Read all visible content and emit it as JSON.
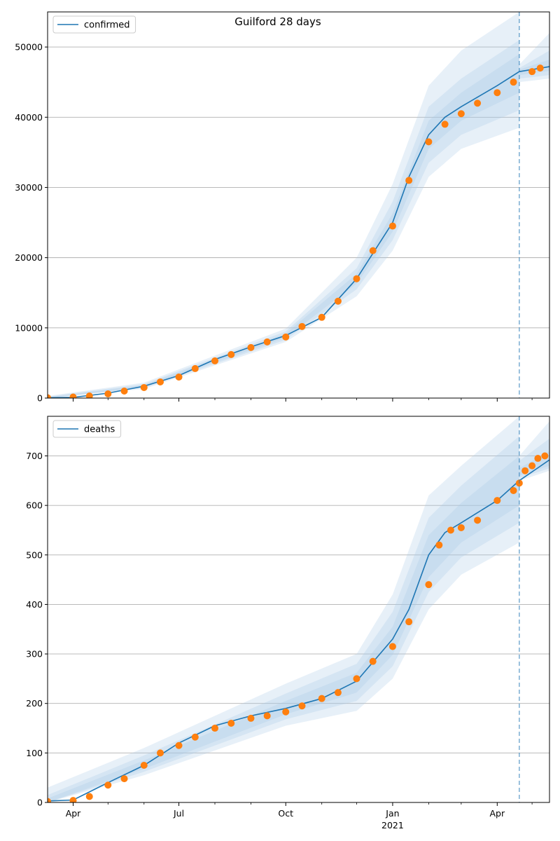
{
  "figure": {
    "title": "Guilford 28 days"
  },
  "colors": {
    "model_line": "#1f77b4",
    "observed": "#ff7f0e",
    "band": "#a9c8e6",
    "grid": "#b0b0b0",
    "vline": "#1f77b4"
  },
  "x_axis": {
    "start": "2020-03-10",
    "end": "2021-05-16",
    "major_ticks": [
      {
        "date": "2020-04-01",
        "label": "Apr",
        "sublabel": ""
      },
      {
        "date": "2020-07-01",
        "label": "Jul",
        "sublabel": ""
      },
      {
        "date": "2020-10-01",
        "label": "Oct",
        "sublabel": ""
      },
      {
        "date": "2021-01-01",
        "label": "Jan",
        "sublabel": "2021"
      },
      {
        "date": "2021-04-01",
        "label": "Apr",
        "sublabel": ""
      }
    ],
    "minor_ticks": [
      "2020-05-01",
      "2020-06-01",
      "2020-08-01",
      "2020-09-01",
      "2020-11-01",
      "2020-12-01",
      "2021-02-01",
      "2021-03-01",
      "2021-05-01"
    ]
  },
  "chart_data": [
    {
      "type": "line",
      "legend": "confirmed",
      "legend_placement": "top-left",
      "grid": "y",
      "ylim": [
        0,
        55000
      ],
      "yticks": [
        0,
        10000,
        20000,
        30000,
        40000,
        50000
      ],
      "forecast_start": "2021-04-20",
      "model": [
        [
          "2020-03-10",
          50
        ],
        [
          "2020-04-01",
          100
        ],
        [
          "2020-05-01",
          700
        ],
        [
          "2020-06-01",
          1700
        ],
        [
          "2020-07-01",
          3200
        ],
        [
          "2020-08-01",
          5500
        ],
        [
          "2020-09-01",
          7300
        ],
        [
          "2020-10-01",
          8900
        ],
        [
          "2020-11-01",
          11500
        ],
        [
          "2020-12-01",
          17000
        ],
        [
          "2021-01-01",
          25000
        ],
        [
          "2021-01-15",
          31500
        ],
        [
          "2021-02-01",
          37500
        ],
        [
          "2021-02-15",
          40000
        ],
        [
          "2021-03-01",
          41500
        ],
        [
          "2021-04-01",
          44500
        ],
        [
          "2021-04-20",
          46500
        ],
        [
          "2021-05-16",
          47200
        ]
      ],
      "bands": [
        {
          "level": "outer",
          "lower": [
            [
              "2020-03-10",
              0
            ],
            [
              "2020-06-01",
              1300
            ],
            [
              "2020-10-01",
              8000
            ],
            [
              "2020-12-01",
              14500
            ],
            [
              "2021-01-01",
              21000
            ],
            [
              "2021-02-01",
              31500
            ],
            [
              "2021-03-01",
              35500
            ],
            [
              "2021-04-20",
              38500
            ],
            [
              "2021-04-20",
              45000
            ],
            [
              "2021-05-16",
              45500
            ]
          ],
          "upper": [
            [
              "2020-03-10",
              300
            ],
            [
              "2020-06-01",
              2200
            ],
            [
              "2020-10-01",
              9900
            ],
            [
              "2020-12-01",
              20000
            ],
            [
              "2021-01-01",
              30500
            ],
            [
              "2021-02-01",
              44500
            ],
            [
              "2021-03-01",
              49500
            ],
            [
              "2021-04-20",
              55000
            ],
            [
              "2021-04-20",
              47500
            ],
            [
              "2021-05-16",
              52000
            ]
          ]
        },
        {
          "level": "middle",
          "lower": [
            [
              "2020-03-10",
              0
            ],
            [
              "2020-06-01",
              1450
            ],
            [
              "2020-10-01",
              8300
            ],
            [
              "2020-12-01",
              15500
            ],
            [
              "2021-01-01",
              22500
            ],
            [
              "2021-02-01",
              33500
            ],
            [
              "2021-03-01",
              37500
            ],
            [
              "2021-04-20",
              41000
            ],
            [
              "2021-04-20",
              45500
            ],
            [
              "2021-05-16",
              46000
            ]
          ],
          "upper": [
            [
              "2020-03-10",
              200
            ],
            [
              "2020-06-01",
              2000
            ],
            [
              "2020-10-01",
              9500
            ],
            [
              "2020-12-01",
              18500
            ],
            [
              "2021-01-01",
              28000
            ],
            [
              "2021-02-01",
              41500
            ],
            [
              "2021-03-01",
              45500
            ],
            [
              "2021-04-20",
              51000
            ],
            [
              "2021-04-20",
              47000
            ],
            [
              "2021-05-16",
              49500
            ]
          ]
        },
        {
          "level": "inner",
          "lower": [
            [
              "2020-03-10",
              0
            ],
            [
              "2020-06-01",
              1550
            ],
            [
              "2020-10-01",
              8600
            ],
            [
              "2020-12-01",
              16300
            ],
            [
              "2021-01-01",
              23700
            ],
            [
              "2021-02-01",
              35500
            ],
            [
              "2021-03-01",
              39500
            ],
            [
              "2021-04-20",
              43500
            ],
            [
              "2021-04-20",
              46000
            ],
            [
              "2021-05-16",
              46600
            ]
          ],
          "upper": [
            [
              "2020-03-10",
              120
            ],
            [
              "2020-06-01",
              1850
            ],
            [
              "2020-10-01",
              9200
            ],
            [
              "2020-12-01",
              17700
            ],
            [
              "2021-01-01",
              26300
            ],
            [
              "2021-02-01",
              39500
            ],
            [
              "2021-03-01",
              43500
            ],
            [
              "2021-04-20",
              49000
            ],
            [
              "2021-04-20",
              46800
            ],
            [
              "2021-05-16",
              48200
            ]
          ]
        }
      ],
      "observed": [
        [
          "2020-03-10",
          50
        ],
        [
          "2020-04-01",
          150
        ],
        [
          "2020-04-15",
          300
        ],
        [
          "2020-05-01",
          600
        ],
        [
          "2020-05-15",
          1000
        ],
        [
          "2020-06-01",
          1500
        ],
        [
          "2020-06-15",
          2300
        ],
        [
          "2020-07-01",
          3000
        ],
        [
          "2020-07-15",
          4200
        ],
        [
          "2020-08-01",
          5300
        ],
        [
          "2020-08-15",
          6200
        ],
        [
          "2020-09-01",
          7200
        ],
        [
          "2020-09-15",
          8000
        ],
        [
          "2020-10-01",
          8700
        ],
        [
          "2020-10-15",
          10200
        ],
        [
          "2020-11-01",
          11500
        ],
        [
          "2020-11-15",
          13800
        ],
        [
          "2020-12-01",
          17000
        ],
        [
          "2020-12-15",
          21000
        ],
        [
          "2021-01-01",
          24500
        ],
        [
          "2021-01-15",
          31000
        ],
        [
          "2021-02-01",
          36500
        ],
        [
          "2021-02-15",
          39000
        ],
        [
          "2021-03-01",
          40500
        ],
        [
          "2021-03-15",
          42000
        ],
        [
          "2021-04-01",
          43500
        ],
        [
          "2021-04-15",
          45000
        ],
        [
          "2021-05-01",
          46500
        ],
        [
          "2021-05-08",
          47000
        ]
      ]
    },
    {
      "type": "line",
      "legend": "deaths",
      "legend_placement": "top-left",
      "grid": "y",
      "ylim": [
        0,
        780
      ],
      "yticks": [
        0,
        100,
        200,
        300,
        400,
        500,
        600,
        700
      ],
      "forecast_start": "2021-04-20",
      "model": [
        [
          "2020-03-10",
          3
        ],
        [
          "2020-04-01",
          5
        ],
        [
          "2020-05-01",
          40
        ],
        [
          "2020-06-01",
          75
        ],
        [
          "2020-07-01",
          120
        ],
        [
          "2020-08-01",
          155
        ],
        [
          "2020-09-01",
          175
        ],
        [
          "2020-10-01",
          190
        ],
        [
          "2020-11-01",
          210
        ],
        [
          "2020-12-01",
          245
        ],
        [
          "2021-01-01",
          330
        ],
        [
          "2021-01-15",
          390
        ],
        [
          "2021-02-01",
          500
        ],
        [
          "2021-02-15",
          545
        ],
        [
          "2021-03-01",
          565
        ],
        [
          "2021-04-01",
          610
        ],
        [
          "2021-04-20",
          650
        ],
        [
          "2021-05-16",
          692
        ]
      ],
      "bands": [
        {
          "level": "outer",
          "lower": [
            [
              "2020-03-10",
              0
            ],
            [
              "2020-06-01",
              55
            ],
            [
              "2020-10-01",
              155
            ],
            [
              "2020-12-01",
              185
            ],
            [
              "2021-01-01",
              250
            ],
            [
              "2021-02-01",
              390
            ],
            [
              "2021-03-01",
              460
            ],
            [
              "2021-04-20",
              525
            ],
            [
              "2021-04-20",
              650
            ],
            [
              "2021-05-16",
              670
            ]
          ],
          "upper": [
            [
              "2020-03-10",
              30
            ],
            [
              "2020-06-01",
              110
            ],
            [
              "2020-10-01",
              240
            ],
            [
              "2020-12-01",
              300
            ],
            [
              "2021-01-01",
              420
            ],
            [
              "2021-02-01",
              620
            ],
            [
              "2021-03-01",
              680
            ],
            [
              "2021-04-20",
              780
            ],
            [
              "2021-04-20",
              700
            ],
            [
              "2021-05-16",
              770
            ]
          ]
        },
        {
          "level": "middle",
          "lower": [
            [
              "2020-03-10",
              0
            ],
            [
              "2020-06-01",
              62
            ],
            [
              "2020-10-01",
              168
            ],
            [
              "2020-12-01",
              205
            ],
            [
              "2021-01-01",
              275
            ],
            [
              "2021-02-01",
              425
            ],
            [
              "2021-03-01",
              495
            ],
            [
              "2021-04-20",
              565
            ],
            [
              "2021-04-20",
              655
            ],
            [
              "2021-05-16",
              675
            ]
          ],
          "upper": [
            [
              "2020-03-10",
              15
            ],
            [
              "2020-06-01",
              95
            ],
            [
              "2020-10-01",
              220
            ],
            [
              "2020-12-01",
              280
            ],
            [
              "2021-01-01",
              385
            ],
            [
              "2021-02-01",
              575
            ],
            [
              "2021-03-01",
              640
            ],
            [
              "2021-04-20",
              740
            ],
            [
              "2021-04-20",
              690
            ],
            [
              "2021-05-16",
              735
            ]
          ]
        },
        {
          "level": "inner",
          "lower": [
            [
              "2020-03-10",
              0
            ],
            [
              "2020-06-01",
              68
            ],
            [
              "2020-10-01",
              178
            ],
            [
              "2020-12-01",
              222
            ],
            [
              "2021-01-01",
              298
            ],
            [
              "2021-02-01",
              455
            ],
            [
              "2021-03-01",
              525
            ],
            [
              "2021-04-20",
              600
            ],
            [
              "2021-04-20",
              660
            ],
            [
              "2021-05-16",
              680
            ]
          ],
          "upper": [
            [
              "2020-03-10",
              8
            ],
            [
              "2020-06-01",
              85
            ],
            [
              "2020-10-01",
              205
            ],
            [
              "2020-12-01",
              262
            ],
            [
              "2021-01-01",
              355
            ],
            [
              "2021-02-01",
              540
            ],
            [
              "2021-03-01",
              605
            ],
            [
              "2021-04-20",
              700
            ],
            [
              "2021-04-20",
              675
            ],
            [
              "2021-05-16",
              710
            ]
          ]
        }
      ],
      "observed": [
        [
          "2020-03-10",
          2
        ],
        [
          "2020-04-01",
          4
        ],
        [
          "2020-04-15",
          12
        ],
        [
          "2020-05-01",
          35
        ],
        [
          "2020-05-15",
          48
        ],
        [
          "2020-06-01",
          75
        ],
        [
          "2020-06-15",
          100
        ],
        [
          "2020-07-01",
          115
        ],
        [
          "2020-07-15",
          132
        ],
        [
          "2020-08-01",
          150
        ],
        [
          "2020-08-15",
          160
        ],
        [
          "2020-09-01",
          170
        ],
        [
          "2020-09-15",
          175
        ],
        [
          "2020-10-01",
          183
        ],
        [
          "2020-10-15",
          195
        ],
        [
          "2020-11-01",
          210
        ],
        [
          "2020-11-15",
          222
        ],
        [
          "2020-12-01",
          250
        ],
        [
          "2020-12-15",
          285
        ],
        [
          "2021-01-01",
          315
        ],
        [
          "2021-01-15",
          365
        ],
        [
          "2021-02-01",
          440
        ],
        [
          "2021-02-10",
          520
        ],
        [
          "2021-02-20",
          550
        ],
        [
          "2021-03-01",
          555
        ],
        [
          "2021-03-15",
          570
        ],
        [
          "2021-04-01",
          610
        ],
        [
          "2021-04-15",
          630
        ],
        [
          "2021-04-20",
          645
        ],
        [
          "2021-04-25",
          670
        ],
        [
          "2021-05-01",
          680
        ],
        [
          "2021-05-06",
          695
        ],
        [
          "2021-05-12",
          700
        ]
      ]
    }
  ]
}
